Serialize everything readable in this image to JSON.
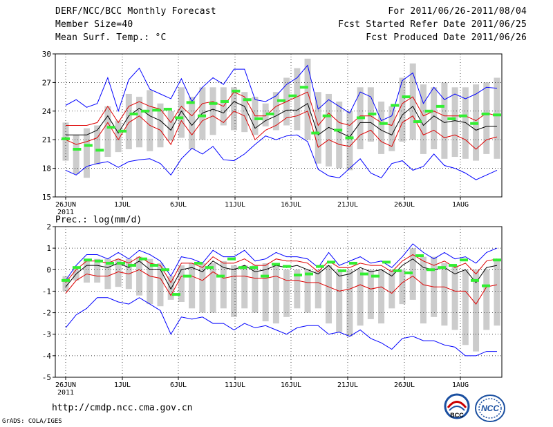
{
  "header": {
    "title": "DERF/NCC/BCC Monthly Forecast",
    "member_size": "Member Size=40",
    "variable": "Mean Surf. Temp.: °C",
    "period": "For 2011/06/26-2011/08/04",
    "started": "Fcst Started Refer Date 2011/06/25",
    "produced": "Fcst Produced Date 2011/06/26"
  },
  "footer": {
    "url": "http://cmdp.ncc.cma.gov.cn",
    "grads": "GrADS: COLA/IGES",
    "logo_left_text": "BCC",
    "logo_right_text": "NCC"
  },
  "colors": {
    "max_min": "#0000ff",
    "pct": "#dd0000",
    "median": "#000000",
    "green": "#33ee33",
    "box": "#cccccc"
  },
  "chart_data": [
    {
      "type": "line",
      "title": "Mean Surf. Temp.: °C",
      "x_ticks": [
        "26JUN",
        "1JUL",
        "6JUL",
        "11JUL",
        "16JUL",
        "21JUL",
        "26JUL",
        "1AUG"
      ],
      "x_year_label": "2011",
      "ylim": [
        15,
        30
      ],
      "y_ticks": [
        15,
        18,
        21,
        24,
        27,
        30
      ],
      "series": [
        {
          "name": "max",
          "color": "blue",
          "values": [
            24.6,
            25.2,
            24.4,
            24.8,
            27.5,
            24.0,
            27.3,
            28.5,
            26.3,
            25.8,
            25.3,
            27.4,
            25.0,
            26.5,
            27.5,
            26.8,
            28.4,
            28.4,
            25.2,
            25.0,
            25.6,
            26.8,
            27.5,
            28.8,
            24.2,
            25.2,
            24.5,
            23.8,
            26.0,
            25.5,
            23.0,
            23.5,
            27.2,
            28.0,
            24.8,
            26.5,
            25.2,
            25.8,
            25.3,
            25.8,
            26.5,
            26.4
          ]
        },
        {
          "name": "p75",
          "color": "red",
          "values": [
            22.5,
            22.5,
            22.5,
            22.8,
            24.5,
            22.8,
            24.5,
            25.0,
            24.5,
            24.2,
            22.8,
            24.5,
            23.5,
            24.8,
            25.0,
            24.5,
            26.0,
            25.5,
            23.5,
            23.5,
            24.5,
            25.0,
            25.5,
            26.0,
            22.5,
            23.8,
            22.8,
            22.5,
            23.5,
            23.5,
            22.8,
            22.5,
            24.8,
            25.5,
            23.5,
            24.0,
            23.5,
            23.5,
            23.5,
            23.0,
            23.8,
            23.5
          ]
        },
        {
          "name": "median",
          "color": "black",
          "values": [
            21.5,
            21.5,
            21.5,
            22.0,
            23.5,
            21.7,
            23.5,
            24.3,
            23.5,
            23.0,
            22.0,
            24.0,
            22.5,
            23.8,
            24.2,
            23.8,
            25.0,
            24.5,
            22.2,
            23.0,
            23.5,
            24.1,
            24.1,
            24.8,
            21.5,
            22.3,
            21.8,
            21.3,
            22.8,
            22.8,
            22.0,
            21.5,
            23.6,
            24.5,
            22.5,
            23.5,
            22.8,
            23.0,
            22.8,
            22.0,
            22.4,
            22.4
          ]
        },
        {
          "name": "p25",
          "color": "red",
          "values": [
            21.0,
            20.5,
            20.8,
            21.2,
            22.8,
            21.0,
            22.8,
            23.5,
            22.5,
            22.0,
            20.5,
            23.0,
            21.5,
            23.0,
            23.5,
            22.8,
            24.0,
            23.5,
            21.0,
            22.0,
            22.5,
            23.3,
            23.5,
            24.0,
            20.2,
            21.0,
            20.5,
            20.3,
            21.5,
            22.0,
            20.8,
            20.3,
            22.8,
            23.5,
            21.5,
            22.0,
            21.2,
            21.5,
            21.0,
            20.0,
            21.0,
            21.3
          ]
        },
        {
          "name": "min",
          "color": "blue",
          "values": [
            17.8,
            17.3,
            18.2,
            18.5,
            18.7,
            18.1,
            18.7,
            18.9,
            19.0,
            18.5,
            17.3,
            19.0,
            20.1,
            19.5,
            20.3,
            18.9,
            18.8,
            19.5,
            20.5,
            21.4,
            21.0,
            21.4,
            21.5,
            20.8,
            17.9,
            17.2,
            17.0,
            18.0,
            19.0,
            17.5,
            17.0,
            18.5,
            18.8,
            17.8,
            18.2,
            19.5,
            18.3,
            18.0,
            17.5,
            16.8,
            17.3,
            17.8
          ]
        }
      ],
      "boxes": [
        [
          18.8,
          22.8
        ],
        [
          17.4,
          21.5
        ],
        [
          17.0,
          22.2
        ],
        [
          18.4,
          22.5
        ],
        [
          19.2,
          24.5
        ],
        [
          19.7,
          23.0
        ],
        [
          20.0,
          25.8
        ],
        [
          20.2,
          25.5
        ],
        [
          19.8,
          26.2
        ],
        [
          20.2,
          24.8
        ],
        [
          20.9,
          24.0
        ],
        [
          21.2,
          26.5
        ],
        [
          20.0,
          25.5
        ],
        [
          21.0,
          26.5
        ],
        [
          21.5,
          26.5
        ],
        [
          22.5,
          26.5
        ],
        [
          22.0,
          26.5
        ],
        [
          21.8,
          26.0
        ],
        [
          21.5,
          25.5
        ],
        [
          22.4,
          24.8
        ],
        [
          22.0,
          26.0
        ],
        [
          22.5,
          27.5
        ],
        [
          22.0,
          28.5
        ],
        [
          21.0,
          29.5
        ],
        [
          18.5,
          26.0
        ],
        [
          18.2,
          25.8
        ],
        [
          18.0,
          25.0
        ],
        [
          17.8,
          24.0
        ],
        [
          20.0,
          26.5
        ],
        [
          20.8,
          26.5
        ],
        [
          19.5,
          25.0
        ],
        [
          19.8,
          24.5
        ],
        [
          20.8,
          27.5
        ],
        [
          21.0,
          29.0
        ],
        [
          19.5,
          26.8
        ],
        [
          20.0,
          26.5
        ],
        [
          19.0,
          27.0
        ],
        [
          19.2,
          26.5
        ],
        [
          19.0,
          26.5
        ],
        [
          18.8,
          26.8
        ],
        [
          19.5,
          27.0
        ],
        [
          19.0,
          27.5
        ]
      ],
      "green_marks": [
        21.1,
        20.0,
        20.4,
        19.9,
        22.3,
        21.9,
        23.7,
        24.0,
        24.1,
        24.2,
        23.3,
        24.9,
        23.5,
        24.8,
        25.0,
        26.1,
        25.2,
        23.2,
        23.7,
        25.1,
        25.6,
        26.5,
        21.7,
        23.5,
        22.0,
        21.2,
        23.3,
        23.7,
        22.7,
        24.6,
        25.5,
        22.9,
        24.0,
        24.5,
        23.2,
        23.5,
        22.7,
        23.7,
        23.6
      ]
    },
    {
      "type": "line",
      "title": "Prec.: log(mm/d)",
      "x_ticks": [
        "26JUN",
        "1JUL",
        "6JUL",
        "11JUL",
        "16JUL",
        "21JUL",
        "26JUL",
        "1AUG"
      ],
      "x_year_label": "2011",
      "ylim": [
        -5,
        2
      ],
      "y_ticks": [
        -5,
        -4,
        -3,
        -2,
        -1,
        0,
        1,
        2
      ],
      "series": [
        {
          "name": "max",
          "color": "blue",
          "values": [
            -0.5,
            0.2,
            0.7,
            0.7,
            0.5,
            0.8,
            0.5,
            0.9,
            0.7,
            0.4,
            -0.3,
            0.6,
            0.5,
            0.3,
            0.9,
            0.6,
            0.6,
            0.9,
            0.4,
            0.5,
            0.8,
            0.6,
            0.6,
            0.5,
            0.1,
            0.8,
            0.2,
            0.4,
            0.6,
            0.3,
            0.4,
            0.1,
            0.6,
            1.2,
            0.8,
            0.5,
            0.8,
            0.5,
            0.6,
            0.3,
            0.8,
            1.0
          ]
        },
        {
          "name": "p75",
          "color": "red",
          "values": [
            -0.6,
            0.0,
            0.4,
            0.4,
            0.3,
            0.5,
            0.3,
            0.6,
            0.3,
            0.2,
            -0.6,
            0.3,
            0.3,
            0.1,
            0.6,
            0.3,
            0.3,
            0.5,
            0.2,
            0.2,
            0.5,
            0.4,
            0.4,
            0.3,
            -0.1,
            0.4,
            0.1,
            0.1,
            0.3,
            0.2,
            0.2,
            -0.1,
            0.4,
            0.7,
            0.4,
            0.2,
            0.4,
            0.1,
            0.3,
            -0.2,
            0.4,
            0.5
          ]
        },
        {
          "name": "median",
          "color": "black",
          "values": [
            -0.8,
            -0.2,
            0.2,
            0.2,
            0.1,
            0.3,
            0.1,
            0.4,
            0.0,
            0.0,
            -0.9,
            0.0,
            0.1,
            -0.1,
            0.4,
            0.1,
            0.0,
            0.2,
            -0.1,
            0.0,
            0.2,
            0.1,
            0.2,
            0.0,
            -0.2,
            0.2,
            -0.3,
            -0.2,
            0.1,
            -0.1,
            0.0,
            -0.3,
            0.2,
            0.5,
            0.1,
            0.0,
            0.1,
            -0.2,
            0.0,
            -0.6,
            0.1,
            0.2
          ]
        },
        {
          "name": "p25",
          "color": "red",
          "values": [
            -1.1,
            -0.5,
            -0.2,
            -0.3,
            -0.3,
            -0.1,
            -0.2,
            0.0,
            -0.3,
            -0.4,
            -1.2,
            -0.3,
            -0.3,
            -0.5,
            -0.1,
            -0.4,
            -0.3,
            -0.3,
            -0.4,
            -0.4,
            -0.3,
            -0.5,
            -0.5,
            -0.6,
            -0.6,
            -0.8,
            -1.0,
            -0.9,
            -0.7,
            -0.9,
            -0.8,
            -1.1,
            -0.6,
            -0.3,
            -0.7,
            -0.8,
            -0.8,
            -1.0,
            -1.0,
            -1.6,
            -0.8,
            -0.7
          ]
        },
        {
          "name": "min",
          "color": "blue",
          "values": [
            -2.7,
            -2.1,
            -1.8,
            -1.3,
            -1.3,
            -1.5,
            -1.6,
            -1.3,
            -1.6,
            -1.9,
            -3.0,
            -2.2,
            -2.3,
            -2.2,
            -2.5,
            -2.5,
            -2.8,
            -2.5,
            -2.7,
            -2.6,
            -2.8,
            -3.0,
            -2.7,
            -2.6,
            -2.6,
            -3.0,
            -2.9,
            -3.1,
            -2.8,
            -3.2,
            -3.4,
            -3.7,
            -3.2,
            -3.1,
            -3.3,
            -3.3,
            -3.5,
            -3.6,
            -4.0,
            -4.0,
            -3.8,
            -3.8
          ]
        },
        {
          "name": "green",
          "color": "green",
          "values": [
            -0.5,
            0.1,
            0.45,
            0.4,
            0.3,
            0.3,
            0.2,
            0.5,
            0.2,
            0.0,
            -1.15,
            -0.3,
            0.3,
            0.1,
            -0.3,
            0.5,
            0.1,
            0.1,
            -0.3,
            0.25,
            0.15,
            -0.25,
            -0.2,
            0.15,
            0.35,
            -0.05,
            0.3,
            -0.2,
            -0.3,
            0.35,
            -0.05,
            -0.15,
            0.65,
            0.0,
            0.1,
            0.2,
            0.45,
            -0.5,
            -0.75,
            0.45
          ]
        }
      ],
      "boxes": [
        [
          -1.0,
          -0.3
        ],
        [
          -0.5,
          0.0
        ],
        [
          -0.6,
          0.4
        ],
        [
          -0.6,
          0.5
        ],
        [
          -0.9,
          0.5
        ],
        [
          -0.8,
          0.5
        ],
        [
          -0.9,
          0.5
        ],
        [
          -1.2,
          0.6
        ],
        [
          -1.6,
          0.5
        ],
        [
          -1.7,
          0.3
        ],
        [
          -1.4,
          -0.3
        ],
        [
          -1.5,
          0.2
        ],
        [
          -1.8,
          0.3
        ],
        [
          -2.0,
          0.3
        ],
        [
          -2.0,
          0.3
        ],
        [
          -1.8,
          0.4
        ],
        [
          -2.2,
          0.2
        ],
        [
          -1.8,
          0.2
        ],
        [
          -2.0,
          0.2
        ],
        [
          -2.4,
          0.3
        ],
        [
          -2.5,
          0.2
        ],
        [
          -2.2,
          0.0
        ],
        [
          -1.8,
          0.0
        ],
        [
          -2.0,
          0.0
        ],
        [
          -1.8,
          0.0
        ],
        [
          -2.5,
          0.2
        ],
        [
          -2.9,
          0.0
        ],
        [
          -3.1,
          0.0
        ],
        [
          -2.6,
          0.0
        ],
        [
          -2.3,
          0.0
        ],
        [
          -2.5,
          0.0
        ],
        [
          -1.8,
          0.0
        ],
        [
          -1.6,
          0.0
        ],
        [
          -1.4,
          1.0
        ],
        [
          -2.5,
          0.6
        ],
        [
          -2.2,
          0.6
        ],
        [
          -2.6,
          0.3
        ],
        [
          -2.8,
          0.2
        ],
        [
          -3.5,
          0.0
        ],
        [
          -3.8,
          0.0
        ],
        [
          -2.8,
          0.0
        ],
        [
          -2.6,
          0.5
        ]
      ]
    }
  ]
}
